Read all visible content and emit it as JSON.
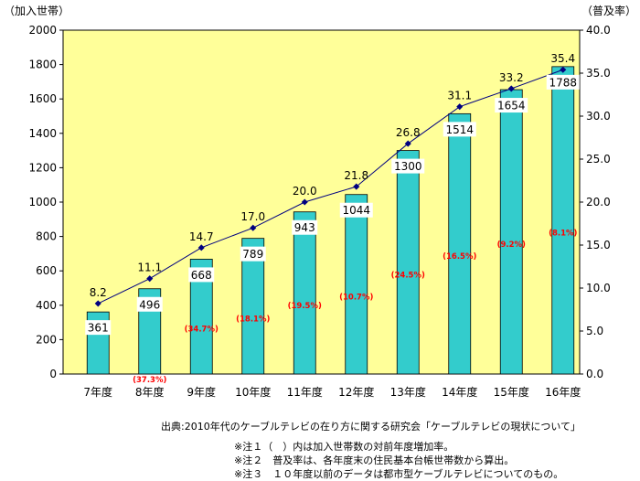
{
  "chart_data": {
    "type": "bar",
    "categories": [
      "7年度",
      "8年度",
      "9年度",
      "10年度",
      "11年度",
      "12年度",
      "13年度",
      "14年度",
      "15年度",
      "16年度"
    ],
    "series": [
      {
        "values": [
          361,
          496,
          668,
          789,
          943,
          1044,
          1300,
          1514,
          1654,
          1788
        ]
      },
      {
        "values": [
          8.2,
          11.1,
          14.7,
          17.0,
          20.0,
          21.8,
          26.8,
          31.1,
          33.2,
          35.4
        ]
      }
    ],
    "growth_labels": [
      "",
      "(37.3%)",
      "(34.7%)",
      "(18.1%)",
      "(19.5%)",
      "(10.7%)",
      "(24.5%)",
      "(16.5%)",
      "(9.2%)",
      "(8.1%)"
    ],
    "left_axis_label": "（加入世帯）",
    "right_axis_label": "（普及率）",
    "ylim": [
      0,
      2000
    ],
    "y2lim": [
      0.0,
      40.0
    ],
    "yticks": [
      "0",
      "200",
      "400",
      "600",
      "800",
      "1000",
      "1200",
      "1400",
      "1600",
      "1800",
      "2000"
    ],
    "y2ticks": [
      "0.0",
      "5.0",
      "10.0",
      "15.0",
      "20.0",
      "25.0",
      "30.0",
      "35.0",
      "40.0"
    ],
    "grid": false,
    "colors": {
      "plot_bg": "#ffff99",
      "bar": "#33cccc",
      "line": "#000080",
      "growth": "#ff0000"
    }
  },
  "notes": {
    "source": "出典:2010年代のケーブルテレビの在り方に関する研究会「ケーブルテレビの現状について」",
    "note1": "※注１（　）内は加入世帯数の対前年度増加率。",
    "note2": "※注２　普及率は、各年度末の住民基本台帳世帯数から算出。",
    "note3": "※注３　１０年度以前のデータは都市型ケーブルテレビについてのもの。"
  }
}
